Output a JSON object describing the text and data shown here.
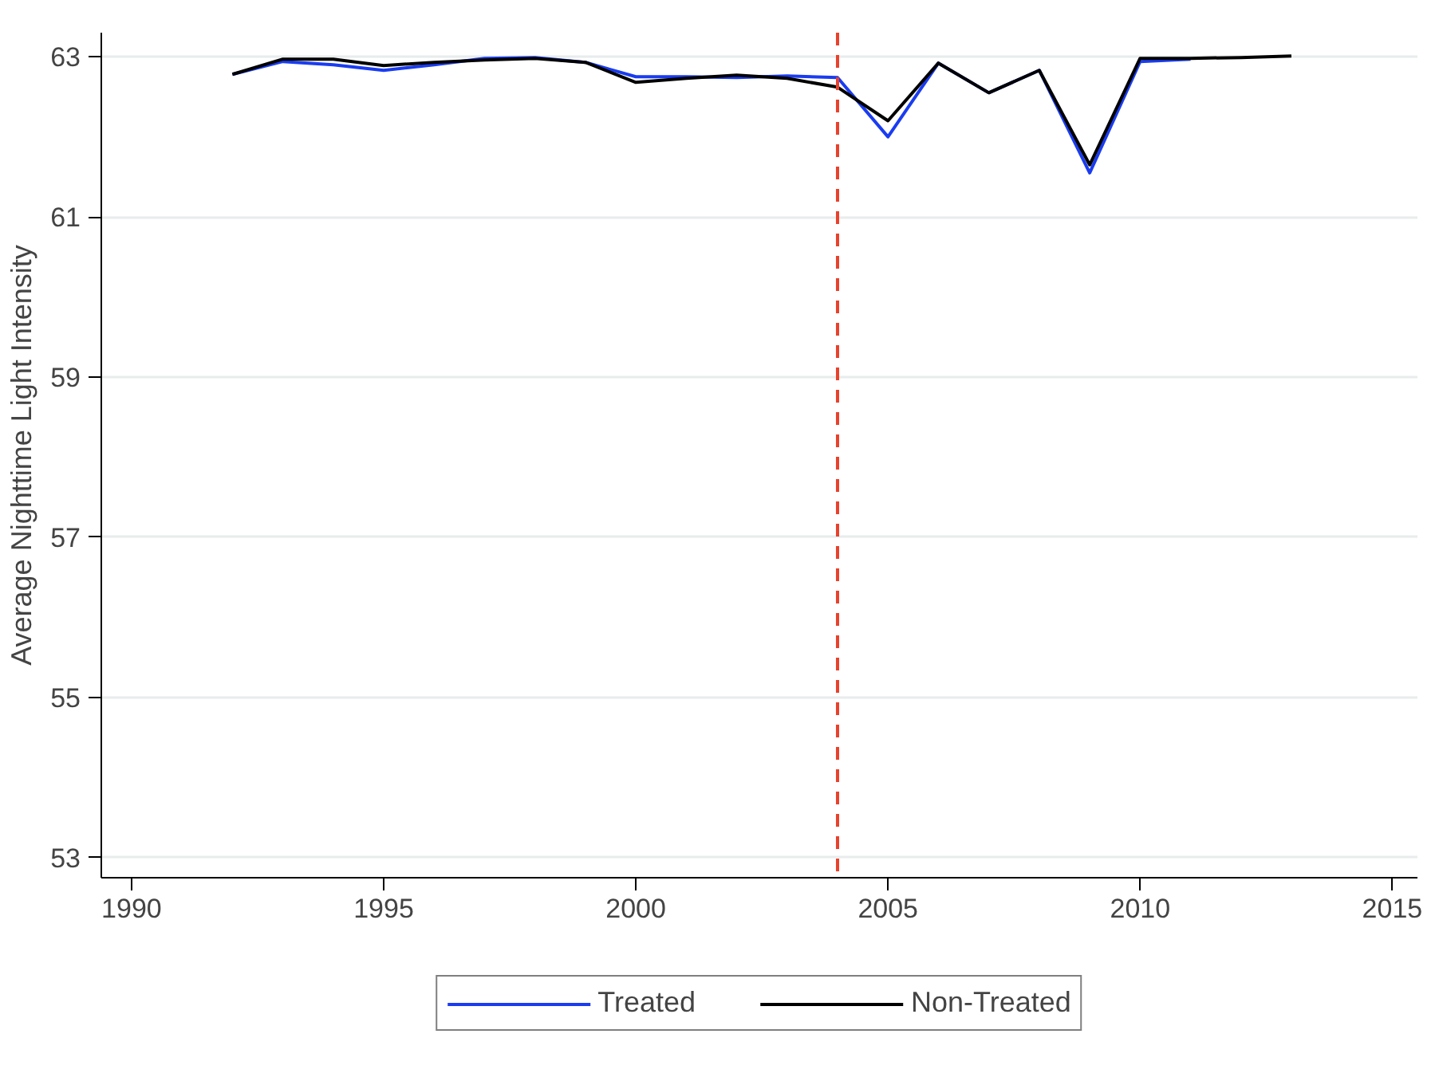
{
  "chart_data": {
    "type": "line",
    "ylabel": "Average Nighttime Light Intensity",
    "x": [
      1992,
      1993,
      1994,
      1995,
      1996,
      1997,
      1998,
      1999,
      2000,
      2001,
      2002,
      2003,
      2004,
      2005,
      2006,
      2007,
      2008,
      2009,
      2010,
      2011,
      2012,
      2013
    ],
    "series": [
      {
        "name": "Treated",
        "color": "#1a3cf0",
        "values": [
          62.78,
          62.94,
          62.9,
          62.83,
          62.9,
          62.98,
          62.99,
          62.93,
          62.75,
          62.75,
          62.74,
          62.76,
          62.74,
          62.0,
          62.92,
          62.55,
          62.83,
          61.55,
          62.94,
          62.97,
          null,
          null
        ]
      },
      {
        "name": "Non-Treated",
        "color": "#000000",
        "values": [
          62.78,
          62.97,
          62.97,
          62.89,
          62.93,
          62.96,
          62.98,
          62.93,
          62.68,
          62.73,
          62.77,
          62.73,
          62.62,
          62.2,
          62.92,
          62.55,
          62.83,
          61.65,
          62.98,
          62.98,
          62.99,
          63.01
        ]
      }
    ],
    "xlim": [
      1989.4,
      2015.5
    ],
    "xticks": [
      1990,
      1995,
      2000,
      2005,
      2010,
      2015
    ],
    "ylim": [
      52.75,
      63.3
    ],
    "yticks": [
      53,
      55,
      57,
      59,
      61,
      63
    ],
    "ref_lines": [
      {
        "axis": "x",
        "value": 2004,
        "color": "#e8412c",
        "line_style": "dashed"
      }
    ],
    "grid": "y",
    "legend": "bottom",
    "line_style": "solid",
    "marker": "none"
  }
}
